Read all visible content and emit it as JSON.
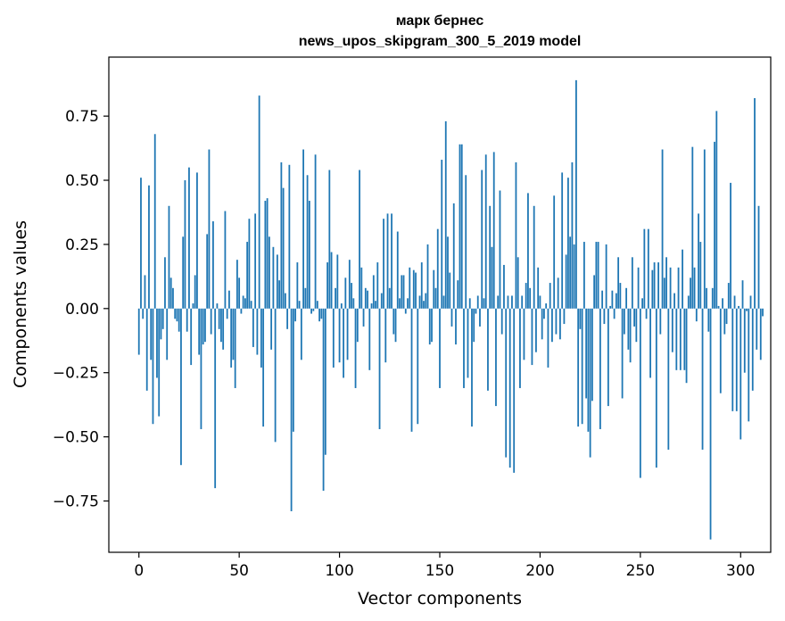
{
  "chart_data": {
    "type": "bar",
    "title": "марк бернес",
    "subtitle": "news_upos_skipgram_300_5_2019 model",
    "xlabel": "Vector components",
    "ylabel": "Components values",
    "xlim": [
      -15,
      315
    ],
    "ylim": [
      -0.95,
      0.98
    ],
    "xticks": [
      0,
      50,
      100,
      150,
      200,
      250,
      300
    ],
    "xtick_labels": [
      "0",
      "50",
      "100",
      "150",
      "200",
      "250",
      "300"
    ],
    "yticks": [
      -0.75,
      -0.5,
      -0.25,
      0.0,
      0.25,
      0.5,
      0.75
    ],
    "ytick_labels": [
      "−0.75",
      "−0.50",
      "−0.25",
      "0.00",
      "0.25",
      "0.50",
      "0.75"
    ],
    "grid": false,
    "color": "#1f77b4",
    "values": [
      -0.18,
      0.51,
      -0.04,
      0.13,
      -0.32,
      0.48,
      -0.2,
      -0.45,
      0.68,
      -0.27,
      -0.42,
      -0.12,
      -0.08,
      0.2,
      -0.2,
      0.4,
      0.12,
      0.08,
      -0.04,
      -0.05,
      -0.09,
      -0.61,
      0.28,
      0.5,
      -0.09,
      0.55,
      -0.22,
      0.02,
      0.13,
      0.53,
      -0.18,
      -0.47,
      -0.14,
      -0.13,
      0.29,
      0.62,
      -0.1,
      0.34,
      -0.7,
      0.02,
      -0.08,
      -0.13,
      -0.16,
      0.38,
      -0.04,
      0.07,
      -0.23,
      -0.2,
      -0.31,
      0.19,
      0.12,
      -0.02,
      0.05,
      0.04,
      0.26,
      0.35,
      0.03,
      -0.15,
      0.37,
      -0.18,
      0.83,
      -0.23,
      -0.46,
      0.42,
      0.43,
      0.28,
      -0.16,
      0.24,
      -0.52,
      0.21,
      0.11,
      0.57,
      0.47,
      0.06,
      -0.08,
      0.56,
      -0.79,
      -0.48,
      -0.05,
      0.18,
      0.03,
      -0.2,
      0.62,
      0.08,
      0.52,
      0.42,
      -0.02,
      -0.01,
      0.6,
      0.03,
      -0.05,
      -0.04,
      -0.71,
      -0.57,
      0.18,
      0.54,
      0.22,
      -0.23,
      0.08,
      0.21,
      -0.21,
      0.02,
      -0.27,
      0.12,
      -0.2,
      0.19,
      0.1,
      0.04,
      -0.31,
      -0.13,
      0.54,
      0.16,
      -0.07,
      0.08,
      0.07,
      -0.24,
      0.02,
      0.13,
      0.03,
      0.18,
      -0.47,
      0.06,
      0.35,
      -0.21,
      0.37,
      0.08,
      0.37,
      -0.1,
      -0.13,
      0.3,
      0.04,
      0.13,
      0.13,
      -0.02,
      0.04,
      0.16,
      -0.48,
      0.15,
      0.14,
      -0.45,
      0.05,
      0.18,
      0.03,
      0.06,
      0.25,
      -0.14,
      -0.13,
      0.15,
      0.08,
      0.31,
      -0.31,
      0.58,
      0.05,
      0.73,
      0.28,
      0.14,
      -0.07,
      0.41,
      -0.14,
      0.11,
      0.64,
      0.64,
      -0.31,
      0.52,
      -0.27,
      0.04,
      -0.46,
      -0.13,
      -0.02,
      0.05,
      -0.07,
      0.54,
      0.04,
      0.6,
      -0.32,
      0.4,
      0.24,
      0.61,
      -0.38,
      0.05,
      0.46,
      -0.1,
      0.17,
      -0.58,
      0.05,
      -0.62,
      0.05,
      -0.64,
      0.57,
      0.2,
      -0.31,
      0.05,
      -0.2,
      0.1,
      0.45,
      0.08,
      -0.22,
      0.4,
      -0.17,
      0.16,
      0.05,
      -0.12,
      -0.04,
      0.02,
      -0.23,
      0.1,
      -0.13,
      0.44,
      -0.1,
      0.12,
      -0.12,
      0.53,
      -0.06,
      0.21,
      0.51,
      0.28,
      0.57,
      0.25,
      0.89,
      -0.46,
      -0.08,
      -0.45,
      0.26,
      -0.35,
      -0.48,
      -0.58,
      -0.36,
      0.13,
      0.26,
      0.26,
      -0.47,
      0.07,
      -0.06,
      0.25,
      -0.38,
      0.01,
      0.07,
      -0.04,
      0.06,
      0.2,
      0.1,
      -0.35,
      -0.1,
      0.08,
      -0.16,
      -0.21,
      0.2,
      -0.07,
      -0.13,
      0.16,
      -0.66,
      0.04,
      0.31,
      -0.04,
      0.31,
      -0.27,
      0.15,
      0.18,
      -0.62,
      0.18,
      -0.1,
      0.62,
      0.12,
      0.2,
      -0.55,
      0.16,
      -0.17,
      0.06,
      -0.24,
      0.16,
      -0.24,
      0.23,
      -0.24,
      -0.29,
      0.05,
      0.12,
      0.63,
      0.16,
      -0.05,
      0.37,
      0.26,
      -0.55,
      0.62,
      0.08,
      -0.09,
      -0.9,
      0.08,
      0.65,
      0.77,
      0.01,
      -0.33,
      0.04,
      -0.1,
      -0.06,
      0.1,
      0.49,
      -0.4,
      0.05,
      -0.4,
      0.01,
      -0.51,
      0.11,
      -0.25,
      -0.01,
      -0.44,
      0.05,
      -0.32,
      0.82,
      -0.16,
      0.4,
      -0.2,
      -0.03
    ],
    "values_note": ""
  }
}
